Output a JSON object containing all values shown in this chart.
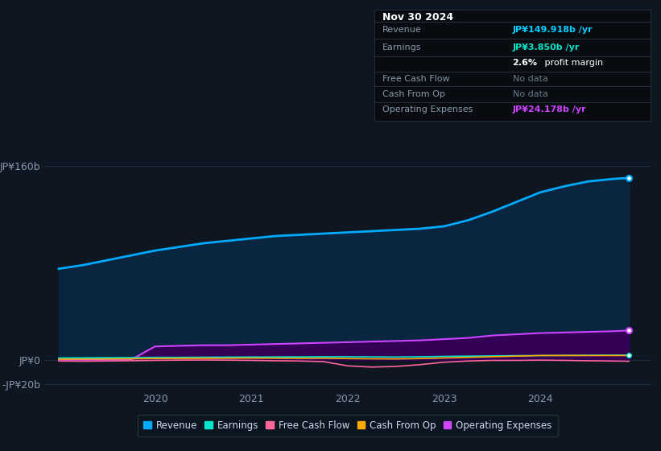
{
  "background_color": "#0e1621",
  "plot_bg_color": "#0e1621",
  "grid_color": "#1e2d3d",
  "title_box_bg": "#080c10",
  "title_box_border": "#2a3a4a",
  "title_box": {
    "date": "Nov 30 2024",
    "revenue_label": "Revenue",
    "revenue_value": "JP¥149.918b /yr",
    "revenue_color": "#00ccff",
    "earnings_label": "Earnings",
    "earnings_value": "JP¥3.850b /yr",
    "earnings_color": "#00e5cc",
    "profit_margin_bold": "2.6%",
    "profit_margin_rest": " profit margin",
    "fcf_label": "Free Cash Flow",
    "fcf_value": "No data",
    "cashop_label": "Cash From Op",
    "cashop_value": "No data",
    "nodata_color": "#6a7a8a",
    "opex_label": "Operating Expenses",
    "opex_value": "JP¥24.178b /yr",
    "opex_color": "#cc44ff"
  },
  "years": [
    2019.0,
    2019.25,
    2019.5,
    2019.75,
    2020.0,
    2020.25,
    2020.5,
    2020.75,
    2021.0,
    2021.25,
    2021.5,
    2021.75,
    2022.0,
    2022.25,
    2022.5,
    2022.75,
    2023.0,
    2023.25,
    2023.5,
    2023.75,
    2024.0,
    2024.25,
    2024.5,
    2024.75,
    2024.92
  ],
  "revenue": [
    75,
    78,
    82,
    86,
    90,
    93,
    96,
    98,
    100,
    102,
    103,
    104,
    105,
    106,
    107,
    108,
    110,
    115,
    122,
    130,
    138,
    143,
    147,
    149,
    149.918
  ],
  "earnings": [
    1.5,
    1.6,
    1.7,
    1.8,
    2.0,
    2.0,
    2.1,
    2.2,
    2.3,
    2.3,
    2.4,
    2.5,
    2.5,
    2.4,
    2.3,
    2.5,
    2.8,
    3.0,
    3.2,
    3.4,
    3.5,
    3.6,
    3.7,
    3.8,
    3.85
  ],
  "free_cash_flow": [
    -1.0,
    -1.2,
    -1.0,
    -0.8,
    -0.5,
    -0.3,
    -0.2,
    -0.3,
    -0.5,
    -0.8,
    -1.0,
    -1.5,
    -5.0,
    -6.0,
    -5.5,
    -4.0,
    -2.0,
    -1.0,
    -0.5,
    -0.5,
    -0.3,
    -0.5,
    -0.8,
    -1.0,
    -1.2
  ],
  "cash_from_op": [
    0.5,
    0.6,
    0.7,
    0.8,
    1.0,
    1.1,
    1.2,
    1.3,
    1.4,
    1.3,
    1.2,
    1.3,
    1.0,
    0.8,
    0.7,
    1.0,
    1.5,
    2.0,
    2.5,
    3.0,
    3.5,
    3.5,
    3.5,
    3.5,
    3.5
  ],
  "operating_expenses": [
    0,
    0,
    0,
    0,
    11,
    11.5,
    12,
    12,
    12.5,
    13,
    13.5,
    14,
    14.5,
    15,
    15.5,
    16,
    17,
    18,
    20,
    21,
    22,
    22.5,
    23,
    23.5,
    24.178
  ],
  "revenue_color": "#00aaff",
  "revenue_fill": "#0a2540",
  "earnings_color": "#00e5cc",
  "fcf_color": "#ff6699",
  "cashop_color": "#ffaa00",
  "opex_color": "#cc44ff",
  "opex_fill": "#330055",
  "ylim": [
    -25,
    185
  ],
  "ylim_display": [
    -20,
    160
  ],
  "ytick_vals": [
    -20,
    0,
    160
  ],
  "ytick_labels": [
    "-JP¥20b",
    "JP¥0",
    "JP¥160b"
  ],
  "xlim_start": 2018.85,
  "xlim_end": 2025.15,
  "xticks": [
    2020,
    2021,
    2022,
    2023,
    2024
  ],
  "legend_items": [
    {
      "label": "Revenue",
      "color": "#00aaff"
    },
    {
      "label": "Earnings",
      "color": "#00e5cc"
    },
    {
      "label": "Free Cash Flow",
      "color": "#ff6699"
    },
    {
      "label": "Cash From Op",
      "color": "#ffaa00"
    },
    {
      "label": "Operating Expenses",
      "color": "#cc44ff"
    }
  ]
}
